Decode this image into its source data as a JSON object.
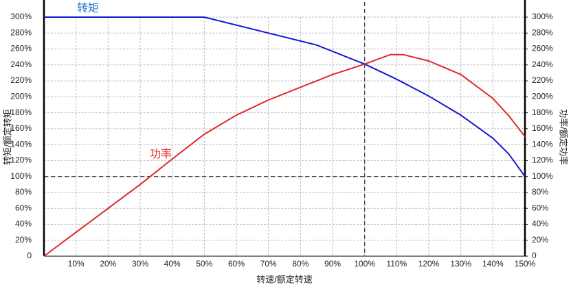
{
  "chart_data": {
    "type": "line",
    "xlabel": "转速/额定转速",
    "ylabel": "转矩/额定转矩",
    "y2label": "功率/额定功率",
    "xlim": [
      0,
      150
    ],
    "xticks": [
      {
        "value": 10,
        "label": "10%"
      },
      {
        "value": 20,
        "label": "20%"
      },
      {
        "value": 30,
        "label": "30%"
      },
      {
        "value": 40,
        "label": "40%"
      },
      {
        "value": 50,
        "label": "50%"
      },
      {
        "value": 60,
        "label": "60%"
      },
      {
        "value": 70,
        "label": "70%"
      },
      {
        "value": 80,
        "label": "80%"
      },
      {
        "value": 90,
        "label": "90%"
      },
      {
        "value": 100,
        "label": "100%"
      },
      {
        "value": 110,
        "label": "110%"
      },
      {
        "value": 120,
        "label": "120%"
      },
      {
        "value": 130,
        "label": "130%"
      },
      {
        "value": 140,
        "label": "140%"
      },
      {
        "value": 150,
        "label": "150%"
      }
    ],
    "ylim": [
      0,
      300
    ],
    "yticks": [
      0,
      {
        "value": 20,
        "label": "20%"
      },
      {
        "value": 40,
        "label": "40%"
      },
      {
        "value": 60,
        "label": "60%"
      },
      {
        "value": 80,
        "label": "80%"
      },
      {
        "value": 100,
        "label": "100%"
      },
      {
        "value": 120,
        "label": "120%"
      },
      {
        "value": 140,
        "label": "140%"
      },
      {
        "value": 160,
        "label": "160%"
      },
      {
        "value": 180,
        "label": "180%"
      },
      {
        "value": 200,
        "label": "200%"
      },
      {
        "value": 220,
        "label": "220%"
      },
      {
        "value": 240,
        "label": "240%"
      },
      {
        "value": 260,
        "label": "260%"
      },
      {
        "value": 280,
        "label": "280%"
      },
      {
        "value": 300,
        "label": "300%"
      }
    ],
    "y2lim": [
      0,
      300
    ],
    "y2ticks": [
      0,
      {
        "value": 20,
        "label": "20%"
      },
      {
        "value": 40,
        "label": "40%"
      },
      {
        "value": 60,
        "label": "60%"
      },
      {
        "value": 80,
        "label": "80%"
      },
      {
        "value": 100,
        "label": "100%"
      },
      {
        "value": 120,
        "label": "120%"
      },
      {
        "value": 140,
        "label": "140%"
      },
      {
        "value": 160,
        "label": "160%"
      },
      {
        "value": 180,
        "label": "180%"
      },
      {
        "value": 200,
        "label": "200%"
      },
      {
        "value": 220,
        "label": "220%"
      },
      {
        "value": 240,
        "label": "240%"
      },
      {
        "value": 260,
        "label": "260%"
      },
      {
        "value": 280,
        "label": "280%"
      },
      {
        "value": 300,
        "label": "300%"
      }
    ],
    "grid": true,
    "reference_x": 100,
    "reference_y": 100,
    "series": [
      {
        "name": "转矩",
        "color": "#1414d2",
        "label_color": "#1a6fc8",
        "x": [
          0,
          50,
          85,
          100,
          110,
          120,
          130,
          140,
          145,
          150
        ],
        "values": [
          300,
          300,
          265,
          241,
          222,
          201,
          177,
          148,
          128,
          100
        ]
      },
      {
        "name": "功率",
        "color": "#e0282a",
        "label_color": "#e0282a",
        "axis": "y2",
        "x": [
          0,
          10,
          20,
          30,
          40,
          50,
          60,
          70,
          80,
          90,
          100,
          108,
          112,
          120,
          130,
          140,
          145,
          150
        ],
        "values": [
          0,
          30,
          60,
          90,
          122,
          153,
          177,
          196,
          212,
          228,
          241,
          253,
          253,
          245,
          228,
          198,
          176,
          150
        ]
      }
    ]
  }
}
